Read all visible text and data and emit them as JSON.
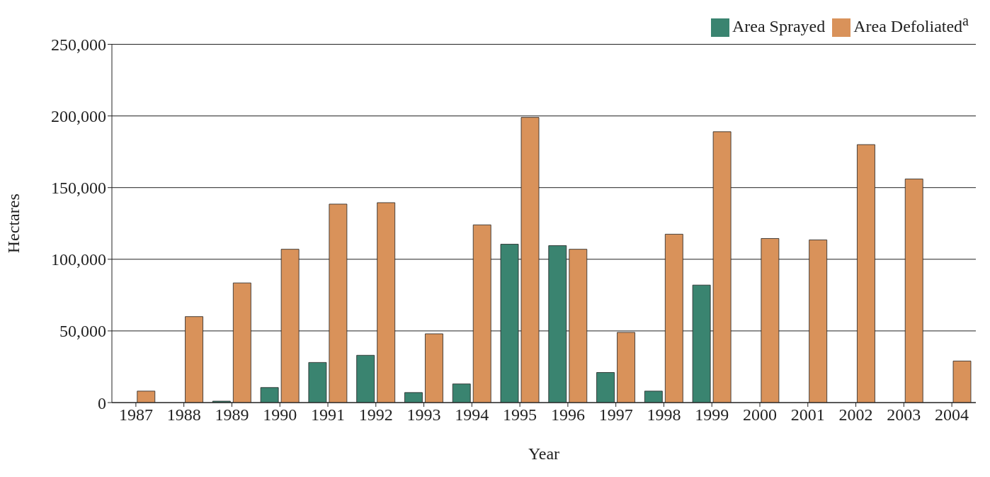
{
  "chart_data": {
    "type": "bar",
    "xlabel": "Year",
    "ylabel": "Hectares",
    "categories": [
      "1987",
      "1988",
      "1989",
      "1990",
      "1991",
      "1992",
      "1993",
      "1994",
      "1995",
      "1996",
      "1997",
      "1998",
      "1999",
      "2000",
      "2001",
      "2002",
      "2003",
      "2004"
    ],
    "series": [
      {
        "name": "Area Sprayed",
        "color": "#3a8470",
        "values": [
          0,
          0,
          1000,
          10500,
          28000,
          33000,
          7000,
          13000,
          110500,
          109500,
          21000,
          8000,
          82000,
          0,
          0,
          0,
          0,
          0
        ]
      },
      {
        "name": "Area Defoliated$^{a}$",
        "color": "#d9925a",
        "values": [
          8000,
          60000,
          83500,
          107000,
          138500,
          139500,
          48000,
          124000,
          199000,
          107000,
          49000,
          117500,
          189000,
          114500,
          113500,
          180000,
          156000,
          29000
        ]
      }
    ],
    "ylim": [
      0,
      250000
    ],
    "yticks": [
      {
        "value": 0,
        "label": "0"
      },
      {
        "value": 50000,
        "label": "50,000"
      },
      {
        "value": 100000,
        "label": "100,000"
      },
      {
        "value": 150000,
        "label": "150,000"
      },
      {
        "value": 200000,
        "label": "200,000"
      },
      {
        "value": 250000,
        "label": "250,000"
      }
    ],
    "grid": "y",
    "legend": "top right"
  }
}
